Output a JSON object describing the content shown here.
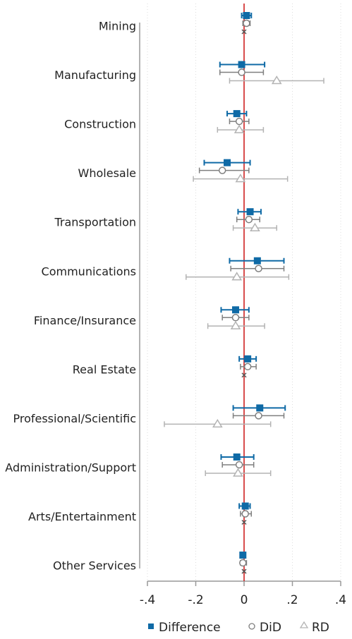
{
  "chart_data": {
    "type": "coefplot",
    "categories": [
      "Mining",
      "Manufacturing",
      "Construction",
      "Wholesale",
      "Transportation",
      "Communications",
      "Finance/Insurance",
      "Real Estate",
      "Professional/Scientific",
      "Administration/Support",
      "Arts/Entertainment",
      "Other Services"
    ],
    "series": [
      {
        "name": "Difference",
        "color": "#0f6aa6",
        "marker": "square",
        "values": [
          0.01,
          -0.01,
          -0.03,
          -0.07,
          0.025,
          0.055,
          -0.035,
          0.015,
          0.065,
          -0.03,
          0.005,
          -0.005
        ],
        "lo": [
          -0.01,
          -0.1,
          -0.07,
          -0.165,
          -0.025,
          -0.06,
          -0.095,
          -0.02,
          -0.045,
          -0.095,
          -0.02,
          null
        ],
        "hi": [
          0.03,
          0.085,
          0.01,
          0.025,
          0.07,
          0.165,
          0.02,
          0.05,
          0.17,
          0.04,
          0.025,
          null
        ]
      },
      {
        "name": "DiD",
        "color": "#7f7f7f",
        "marker": "circle",
        "values": [
          0.01,
          -0.01,
          -0.02,
          -0.09,
          0.02,
          0.06,
          -0.035,
          0.015,
          0.06,
          -0.02,
          0.005,
          -0.005
        ],
        "lo": [
          -0.005,
          -0.1,
          -0.06,
          -0.185,
          -0.03,
          -0.055,
          -0.09,
          -0.015,
          -0.045,
          -0.09,
          -0.015,
          -0.015
        ],
        "hi": [
          0.025,
          0.08,
          0.02,
          0.02,
          0.065,
          0.165,
          0.02,
          0.05,
          0.165,
          0.04,
          0.03,
          0.01
        ]
      },
      {
        "name": "RD",
        "color": "#b3b3b3",
        "marker": "triangle",
        "values": [
          0,
          0.135,
          -0.02,
          -0.015,
          0.045,
          -0.03,
          -0.035,
          0,
          -0.11,
          -0.025,
          0,
          0
        ],
        "lo": [
          null,
          -0.06,
          -0.11,
          -0.21,
          -0.045,
          -0.24,
          -0.15,
          null,
          -0.33,
          -0.16,
          null,
          null
        ],
        "hi": [
          null,
          0.33,
          0.08,
          0.18,
          0.135,
          0.185,
          0.085,
          null,
          0.11,
          0.11,
          null,
          null
        ]
      }
    ],
    "xlim": [
      -0.4,
      0.4
    ],
    "xticks": [
      {
        "value": -0.4,
        "label": "-.4"
      },
      {
        "value": -0.2,
        "label": "-.2"
      },
      0,
      {
        "value": 0.2,
        "label": ".2"
      },
      {
        "value": 0.4,
        "label": ".4"
      }
    ],
    "refline": 0,
    "refline_color": "#cc1111",
    "grid": true
  }
}
